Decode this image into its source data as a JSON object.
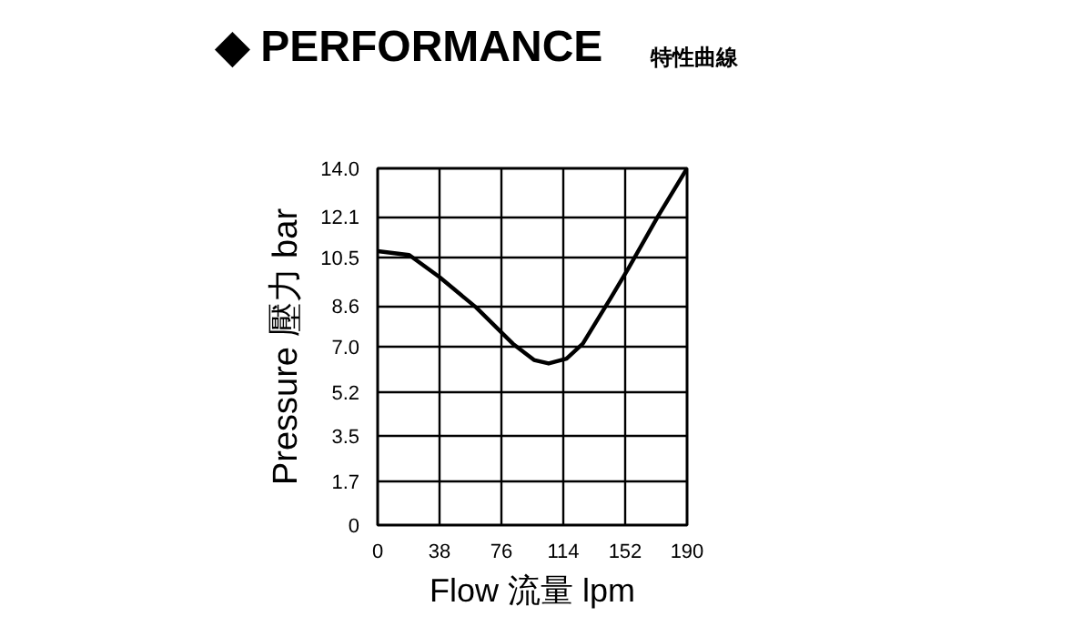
{
  "chart_data": {
    "type": "line",
    "title": "◆ PERFORMANCE",
    "subtitle": "特性曲線",
    "xlabel": "Flow 流量 lpm",
    "ylabel": "Pressure 壓力 bar",
    "x": [
      0,
      19.4,
      38,
      60.5,
      83,
      96,
      105,
      116,
      126,
      143,
      154,
      172,
      190
    ],
    "series": [
      {
        "color": "#000000",
        "values": [
          10.75,
          10.6,
          9.73,
          8.54,
          7.12,
          6.48,
          6.34,
          6.53,
          7.12,
          8.9,
          10.08,
          12.1,
          14.0
        ]
      }
    ],
    "xlim": [
      0,
      190
    ],
    "xticks": [
      0,
      38,
      76,
      114,
      152,
      190
    ],
    "ylim": [
      0,
      14
    ],
    "yticks": [
      0,
      1.7,
      3.5,
      5.2,
      {
        "value": 7,
        "label": "7.0"
      },
      8.6,
      10.5,
      12.1,
      {
        "value": 14,
        "label": "14.0"
      }
    ],
    "grid": true,
    "marker": "none",
    "line_style": "solid"
  }
}
